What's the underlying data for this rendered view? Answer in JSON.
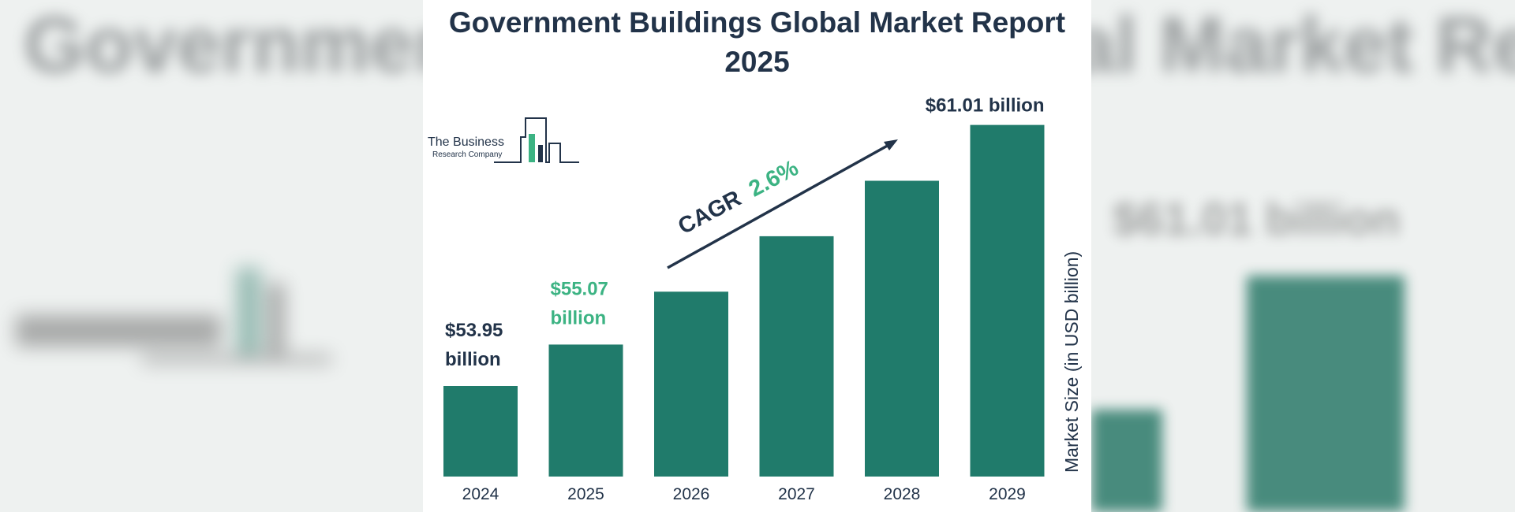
{
  "title_line1": "Government Buildings Global Market Report",
  "title_line2": "2025",
  "logo": {
    "line1": "The Business",
    "line2": "Research Company"
  },
  "cagr": {
    "label": "CAGR",
    "value": "2.6%"
  },
  "colors": {
    "bar": "#207b6b",
    "text": "#223349",
    "highlight": "#3cb383"
  },
  "chart_data": {
    "type": "bar",
    "categories": [
      "2024",
      "2025",
      "2026",
      "2027",
      "2028",
      "2029"
    ],
    "values": [
      53.95,
      55.07,
      56.5,
      58.0,
      59.5,
      61.01
    ],
    "ylabel": "Market Size (in USD billion)",
    "ylim": [
      51.5,
      61.3
    ],
    "labels": [
      {
        "index": 0,
        "lines": [
          "$53.95",
          "billion"
        ],
        "highlight": false
      },
      {
        "index": 1,
        "lines": [
          "$55.07",
          "billion"
        ],
        "highlight": true
      },
      {
        "index": 5,
        "lines": [
          "$61.01 billion"
        ],
        "highlight": false
      }
    ]
  }
}
